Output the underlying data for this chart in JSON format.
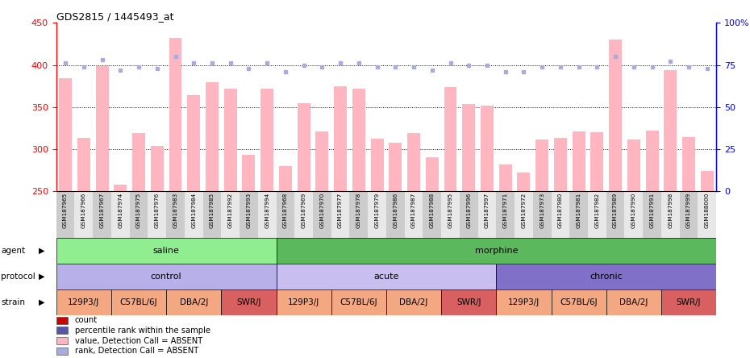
{
  "title": "GDS2815 / 1445493_at",
  "samples": [
    "GSM187965",
    "GSM187966",
    "GSM187967",
    "GSM187974",
    "GSM187975",
    "GSM187976",
    "GSM187983",
    "GSM187984",
    "GSM187985",
    "GSM187992",
    "GSM187993",
    "GSM187994",
    "GSM187968",
    "GSM187969",
    "GSM187970",
    "GSM187977",
    "GSM187978",
    "GSM187979",
    "GSM187986",
    "GSM187987",
    "GSM187988",
    "GSM187995",
    "GSM187996",
    "GSM187997",
    "GSM187971",
    "GSM187972",
    "GSM187973",
    "GSM187980",
    "GSM187981",
    "GSM187982",
    "GSM187989",
    "GSM187990",
    "GSM187991",
    "GSM187998",
    "GSM187999",
    "GSM188000"
  ],
  "values": [
    384,
    313,
    399,
    258,
    319,
    304,
    432,
    364,
    379,
    372,
    293,
    372,
    280,
    355,
    321,
    375,
    372,
    312,
    308,
    319,
    290,
    374,
    354,
    352,
    282,
    272,
    311,
    313,
    321,
    320,
    430,
    311,
    322,
    394,
    314,
    274
  ],
  "ranks": [
    76,
    74,
    78,
    72,
    74,
    73,
    80,
    76,
    76,
    76,
    73,
    76,
    71,
    75,
    74,
    76,
    76,
    74,
    74,
    74,
    72,
    76,
    75,
    75,
    71,
    71,
    74,
    74,
    74,
    74,
    80,
    74,
    74,
    77,
    74,
    73
  ],
  "absent_mask": [
    1,
    1,
    1,
    1,
    1,
    1,
    1,
    1,
    1,
    1,
    1,
    1,
    1,
    1,
    1,
    1,
    1,
    1,
    1,
    1,
    1,
    1,
    1,
    1,
    1,
    1,
    1,
    1,
    1,
    1,
    1,
    1,
    1,
    1,
    1,
    1
  ],
  "bar_color_absent": "#ffb6c1",
  "rank_color_absent": "#aaaadd",
  "ylim_left": [
    250,
    450
  ],
  "ylim_right": [
    0,
    100
  ],
  "yticks_left": [
    250,
    300,
    350,
    400,
    450
  ],
  "yticks_right": [
    0,
    25,
    50,
    75,
    100
  ],
  "agent_groups": [
    {
      "label": "saline",
      "start": 0,
      "end": 12,
      "color": "#90ee90"
    },
    {
      "label": "morphine",
      "start": 12,
      "end": 36,
      "color": "#5cb85c"
    }
  ],
  "protocol_groups": [
    {
      "label": "control",
      "start": 0,
      "end": 12,
      "color": "#b8b0e8"
    },
    {
      "label": "acute",
      "start": 12,
      "end": 24,
      "color": "#c8bff0"
    },
    {
      "label": "chronic",
      "start": 24,
      "end": 36,
      "color": "#8070c8"
    }
  ],
  "strain_groups": [
    {
      "label": "129P3/J",
      "start": 0,
      "end": 3,
      "color": "#f4a882"
    },
    {
      "label": "C57BL/6J",
      "start": 3,
      "end": 6,
      "color": "#f4a882"
    },
    {
      "label": "DBA/2J",
      "start": 6,
      "end": 9,
      "color": "#f4a882"
    },
    {
      "label": "SWR/J",
      "start": 9,
      "end": 12,
      "color": "#d96060"
    },
    {
      "label": "129P3/J",
      "start": 12,
      "end": 15,
      "color": "#f4a882"
    },
    {
      "label": "C57BL/6J",
      "start": 15,
      "end": 18,
      "color": "#f4a882"
    },
    {
      "label": "DBA/2J",
      "start": 18,
      "end": 21,
      "color": "#f4a882"
    },
    {
      "label": "SWR/J",
      "start": 21,
      "end": 24,
      "color": "#d96060"
    },
    {
      "label": "129P3/J",
      "start": 24,
      "end": 27,
      "color": "#f4a882"
    },
    {
      "label": "C57BL/6J",
      "start": 27,
      "end": 30,
      "color": "#f4a882"
    },
    {
      "label": "DBA/2J",
      "start": 30,
      "end": 33,
      "color": "#f4a882"
    },
    {
      "label": "SWR/J",
      "start": 33,
      "end": 36,
      "color": "#d96060"
    }
  ],
  "legend_items": [
    {
      "label": "count",
      "color": "#cc0000"
    },
    {
      "label": "percentile rank within the sample",
      "color": "#5555aa"
    },
    {
      "label": "value, Detection Call = ABSENT",
      "color": "#ffb6c1"
    },
    {
      "label": "rank, Detection Call = ABSENT",
      "color": "#aaaadd"
    }
  ],
  "arrow_char": "▶"
}
